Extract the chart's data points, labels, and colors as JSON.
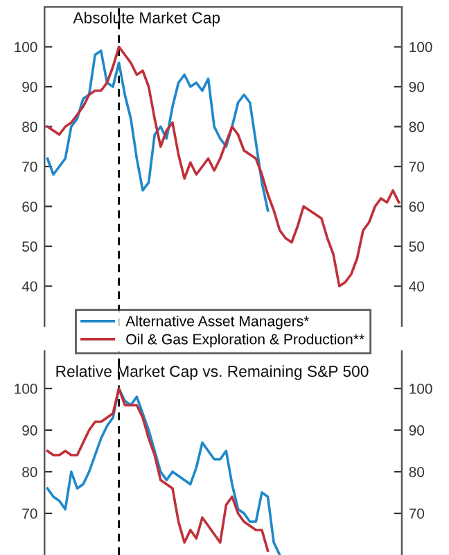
{
  "chart_data": [
    {
      "type": "line",
      "title": "Absolute Market Cap",
      "categories": [
        null,
        null,
        null,
        null,
        null,
        null,
        null,
        null,
        null,
        null,
        null,
        null,
        null,
        null,
        null,
        null,
        null,
        null,
        null,
        null,
        null,
        null,
        null,
        null,
        null,
        null,
        null,
        null,
        null,
        null,
        null,
        null,
        null,
        null,
        null,
        null,
        null,
        null,
        null,
        null,
        null,
        null,
        null,
        null,
        null,
        null,
        null,
        null,
        null,
        null,
        null,
        null,
        null,
        null,
        null,
        null,
        null,
        null,
        null,
        null
      ],
      "series": [
        {
          "name": "Alternative Asset Managers*",
          "color": "#1f88c9",
          "values": [
            72,
            68,
            70,
            72,
            80,
            82,
            87,
            88,
            98,
            99,
            91,
            90,
            96,
            88,
            82,
            72,
            64,
            66,
            78,
            80,
            77,
            85,
            91,
            93,
            90,
            91,
            89,
            92,
            80,
            77,
            75,
            80,
            86,
            88,
            86,
            76,
            66,
            59,
            null,
            null,
            null,
            null,
            null,
            null,
            null,
            null,
            null,
            null,
            null,
            null,
            null,
            null,
            null,
            null,
            null,
            null,
            null,
            null,
            null,
            null
          ]
        },
        {
          "name": "Oil & Gas Exploration & Production**",
          "color": "#c0303a",
          "values": [
            80,
            79,
            78,
            80,
            81,
            83,
            85,
            88,
            89,
            89,
            91,
            95,
            100,
            98,
            96,
            93,
            94,
            90,
            82,
            75,
            79,
            81,
            73,
            67,
            71,
            68,
            70,
            72,
            69,
            72,
            76,
            80,
            78,
            74,
            73,
            72,
            68,
            63,
            59,
            54,
            52,
            51,
            55,
            60,
            59,
            58,
            57,
            52,
            48,
            40,
            41,
            43,
            47,
            54,
            56,
            60,
            62,
            61,
            64,
            61
          ]
        }
      ],
      "ylim": [
        30,
        110
      ],
      "yticks": [
        40,
        50,
        60,
        70,
        80,
        90,
        100
      ],
      "y2lim": [
        30,
        110
      ],
      "y2ticks": [
        40,
        50,
        60,
        70,
        80,
        90,
        100
      ],
      "tick_labels": "y",
      "grid": false,
      "legend": "bottom"
    },
    {
      "type": "line",
      "title": "Relative Market Cap vs. Remaining S&P 500",
      "categories": [
        null,
        null,
        null,
        null,
        null,
        null,
        null,
        null,
        null,
        null,
        null,
        null,
        null,
        null,
        null,
        null,
        null,
        null,
        null,
        null,
        null,
        null,
        null,
        null,
        null,
        null,
        null,
        null,
        null,
        null,
        null,
        null,
        null,
        null,
        null,
        null,
        null,
        null,
        null,
        null,
        null,
        null,
        null,
        null,
        null,
        null,
        null,
        null,
        null,
        null,
        null,
        null,
        null,
        null,
        null,
        null,
        null,
        null,
        null,
        null
      ],
      "series": [
        {
          "color": "#1f88c9",
          "values": [
            76,
            74,
            73,
            71,
            80,
            76,
            77,
            80,
            84,
            88,
            91,
            93,
            100,
            97,
            96,
            98,
            94,
            90,
            85,
            80,
            78,
            80,
            79,
            78,
            77,
            81,
            87,
            85,
            83,
            83,
            85,
            77,
            71,
            70,
            68,
            68,
            75,
            74,
            63,
            60,
            null,
            null,
            null,
            null,
            null,
            null,
            null,
            null,
            null,
            null,
            null,
            null,
            null,
            null,
            null,
            null,
            null,
            null,
            null,
            null
          ]
        },
        {
          "color": "#c0303a",
          "values": [
            85,
            84,
            84,
            85,
            84,
            84,
            87,
            90,
            92,
            92,
            93,
            94,
            100,
            96,
            96,
            96,
            93,
            88,
            84,
            78,
            77,
            76,
            68,
            63,
            66,
            64,
            69,
            67,
            65,
            63,
            72,
            74,
            70,
            68,
            67,
            66,
            66,
            61,
            null,
            null,
            null,
            null,
            null,
            null,
            null,
            null,
            null,
            null,
            null,
            null,
            null,
            null,
            null,
            null,
            null,
            null,
            null,
            null,
            null,
            null
          ]
        }
      ],
      "ylim": [
        60,
        109
      ],
      "yticks": [
        70,
        80,
        90,
        100
      ],
      "y2lim": [
        60,
        109
      ],
      "y2ticks": [
        70,
        80,
        90,
        100
      ],
      "tick_labels": "y",
      "grid": false
    }
  ]
}
